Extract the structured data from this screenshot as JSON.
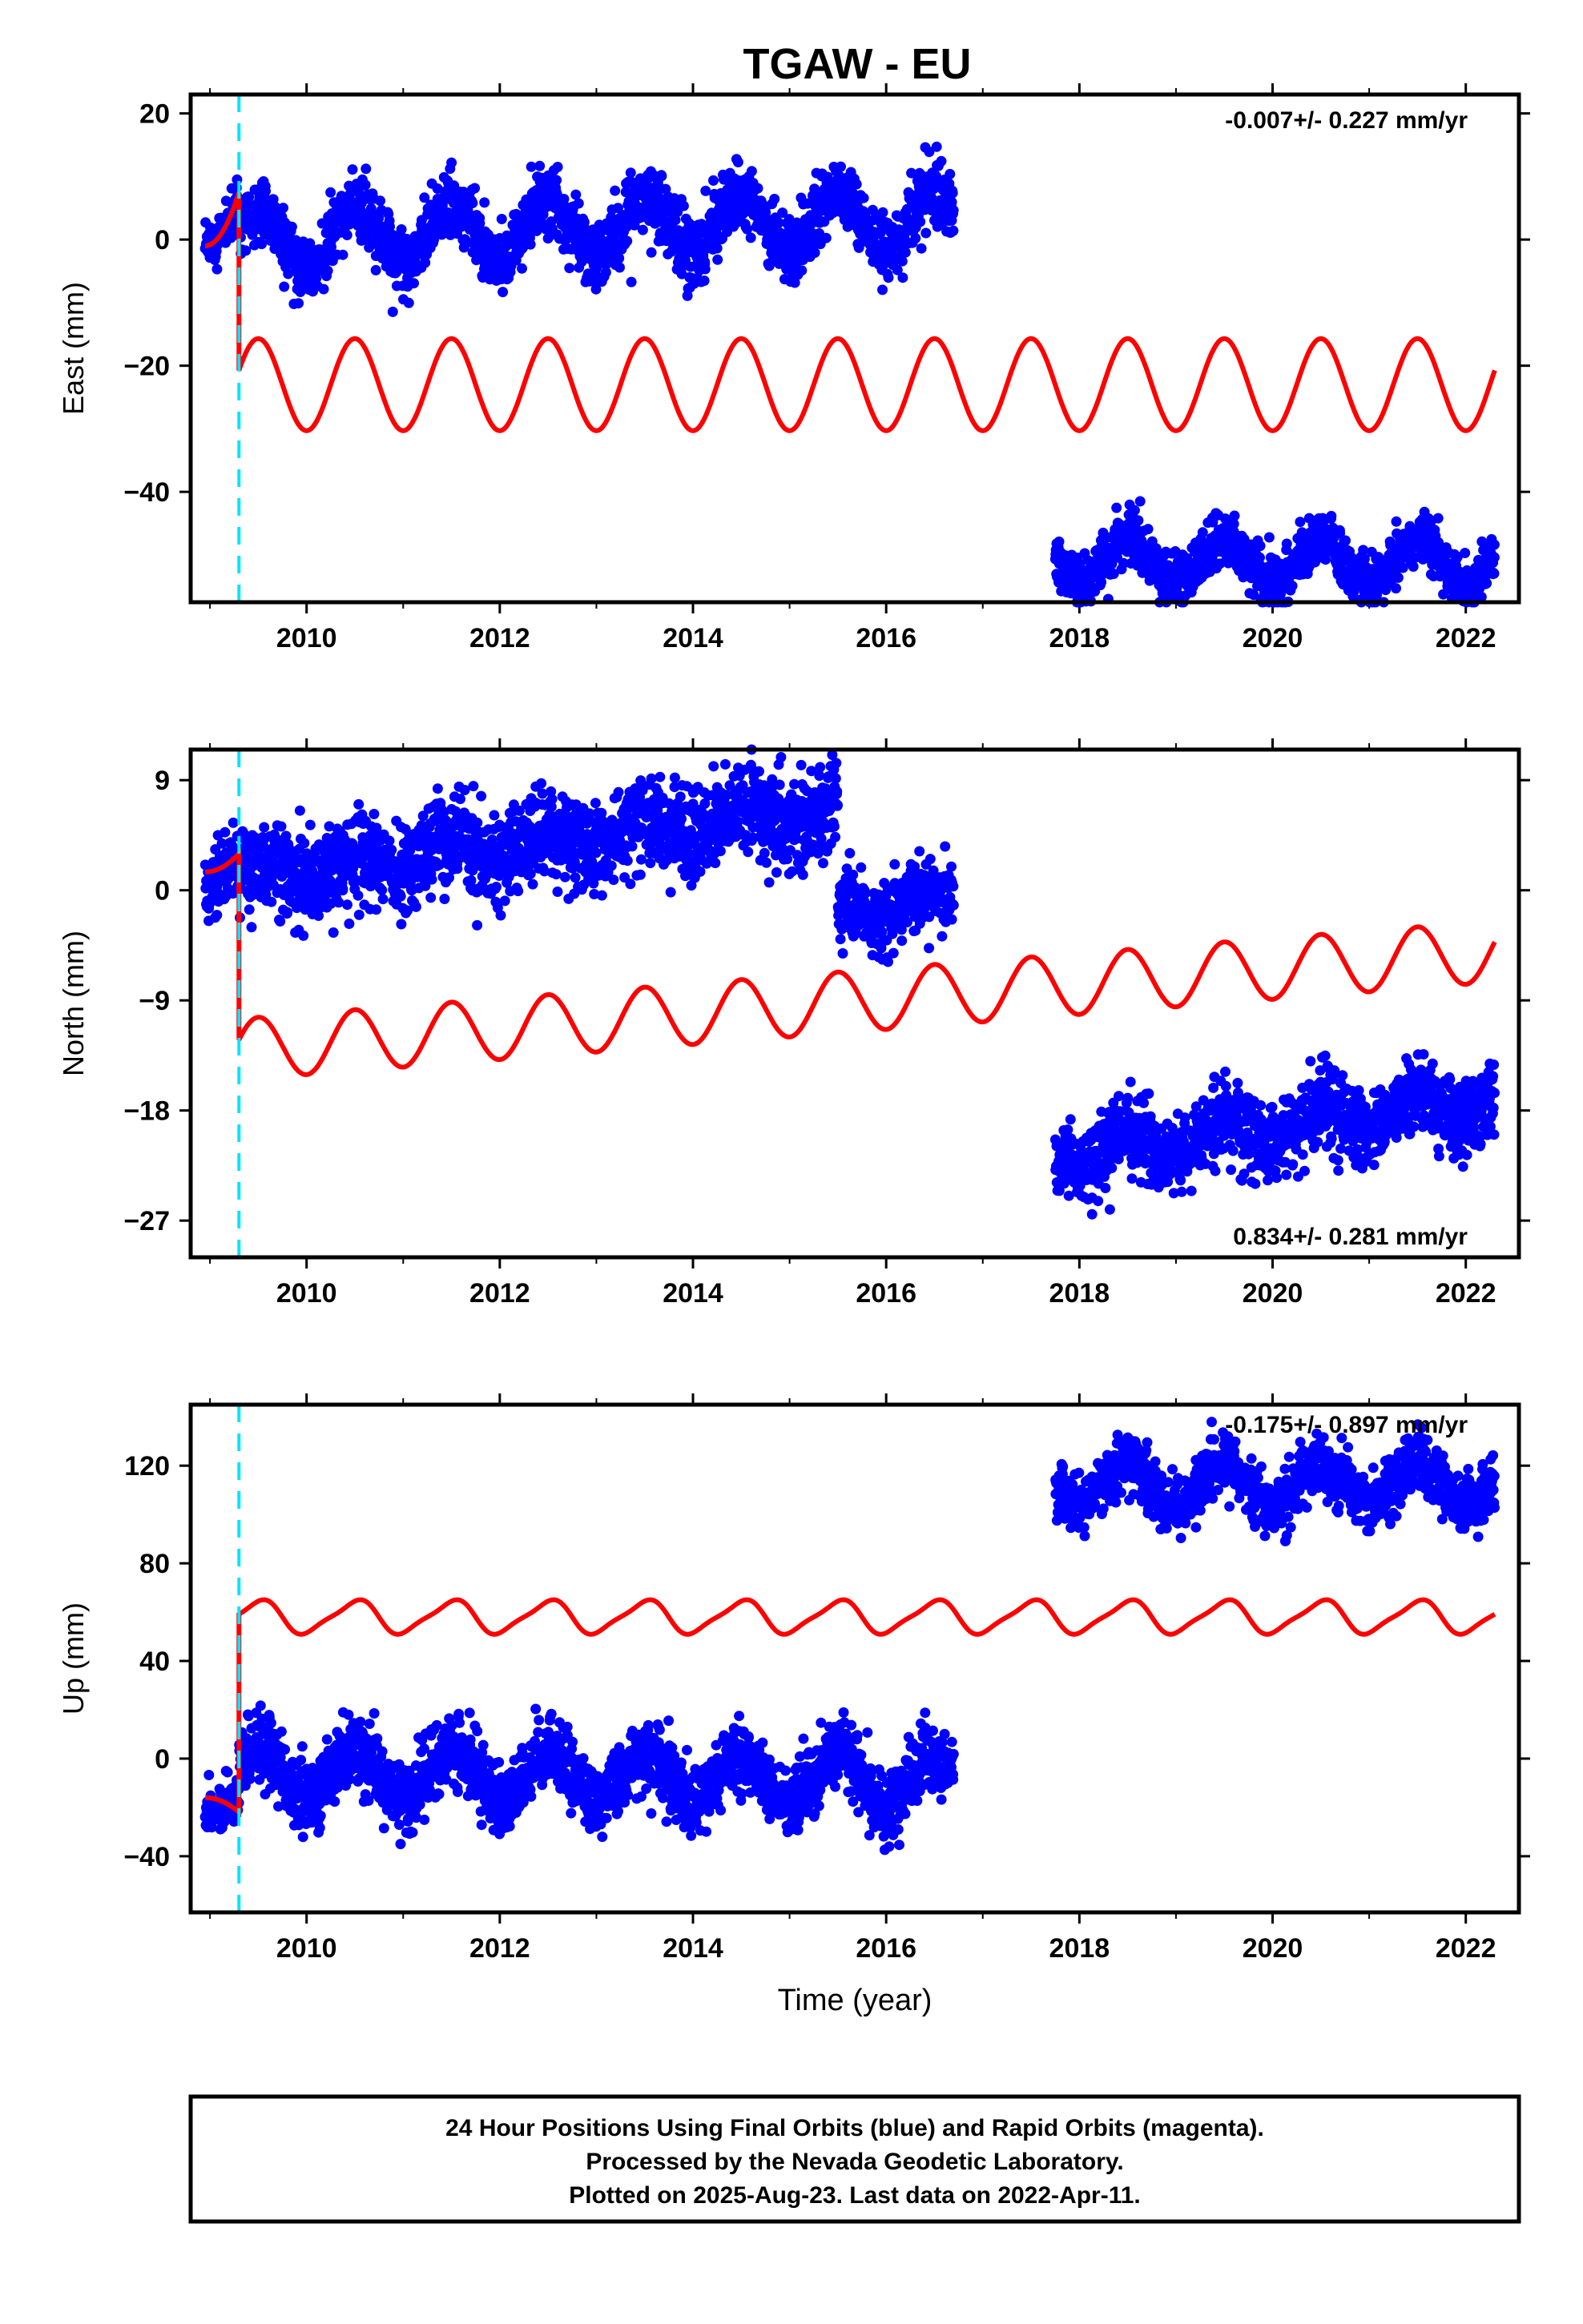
{
  "title": "TGAW - EU",
  "colors": {
    "final_orbits": "#0000ff",
    "model": "#ff0000",
    "event_line": "#00e5ff",
    "axes": "#000000"
  },
  "xaxis": {
    "label": "Time (year)",
    "ticks": [
      "2010",
      "2012",
      "2014",
      "2016",
      "2018",
      "2020",
      "2022"
    ]
  },
  "footer": {
    "line1": "24 Hour Positions Using Final Orbits (blue) and Rapid Orbits (magenta).",
    "line2": "Processed by the Nevada Geodetic Laboratory.",
    "line3": "Plotted on 2025-Aug-23. Last data on 2022-Apr-11."
  },
  "chart_data": [
    {
      "type": "scatter",
      "component": "east",
      "ylabel": "East (mm)",
      "rate": "-0.007+/- 0.227 mm/yr",
      "xlim": [
        2008.8,
        2022.55
      ],
      "ylim": [
        -57.5,
        23
      ],
      "yticks": [
        "20",
        "0",
        "−20",
        "−40"
      ],
      "event_line_x": 2009.3,
      "segments": [
        {
          "x0": 2008.95,
          "x1": 2009.3,
          "base0": -1.5,
          "base1": 5.5,
          "amp": 1.0,
          "noise": 1.8
        },
        {
          "x0": 2009.3,
          "x1": 2016.7,
          "base0": 0.0,
          "base1": 3.5,
          "amp": 4.5,
          "noise": 2.6
        },
        {
          "x0": 2017.75,
          "x1": 2022.3,
          "base0": -51.0,
          "base1": -51.0,
          "amp": 3.5,
          "noise": 2.0
        }
      ],
      "model": {
        "pre": {
          "x0": 2008.95,
          "x1": 2009.3,
          "y0": -1.0,
          "y1": 7.5
        },
        "post": {
          "x0": 2009.3,
          "x1": 2022.3,
          "base": -23.0,
          "amp": 7.3
        }
      }
    },
    {
      "type": "scatter",
      "component": "north",
      "ylabel": "North (mm)",
      "rate": "0.834+/- 0.281 mm/yr",
      "xlim": [
        2008.8,
        2022.55
      ],
      "ylim": [
        -30,
        11.5
      ],
      "yticks": [
        "9",
        "0",
        "−9",
        "−18",
        "−27"
      ],
      "event_line_x": 2009.3,
      "segments": [
        {
          "x0": 2008.95,
          "x1": 2009.3,
          "base0": 1.0,
          "base1": 2.5,
          "amp": 0.5,
          "noise": 1.5
        },
        {
          "x0": 2009.3,
          "x1": 2015.5,
          "base0": 1.0,
          "base1": 6.5,
          "amp": 1.0,
          "noise": 1.8
        },
        {
          "x0": 2015.5,
          "x1": 2016.7,
          "base0": -2.0,
          "base1": -1.0,
          "amp": 0.8,
          "noise": 1.4
        },
        {
          "x0": 2017.75,
          "x1": 2022.3,
          "base0": -22.0,
          "base1": -17.0,
          "amp": 1.2,
          "noise": 1.6
        }
      ],
      "model": {
        "pre": {
          "x0": 2008.95,
          "x1": 2009.3,
          "y0": 1.5,
          "y1": 3.0
        },
        "post": {
          "x0": 2009.3,
          "x1": 2022.3,
          "base0": -13.0,
          "base1": -5.0,
          "amp": 2.5
        }
      }
    },
    {
      "type": "scatter",
      "component": "up",
      "ylabel": "Up (mm)",
      "rate": "-0.175+/- 0.897 mm/yr",
      "xlim": [
        2008.8,
        2022.55
      ],
      "ylim": [
        -63,
        145
      ],
      "yticks": [
        "120",
        "80",
        "40",
        "0",
        "−40"
      ],
      "event_line_x": 2009.3,
      "segments": [
        {
          "x0": 2008.95,
          "x1": 2009.3,
          "base0": -18.0,
          "base1": -16.0,
          "amp": 3.0,
          "noise": 5.0
        },
        {
          "x0": 2009.3,
          "x1": 2016.7,
          "base0": -5.0,
          "base1": -10.0,
          "amp": 10.0,
          "noise": 7.0
        },
        {
          "x0": 2017.75,
          "x1": 2022.3,
          "base0": 112.0,
          "base1": 112.0,
          "amp": 9.0,
          "noise": 6.0
        }
      ],
      "model": {
        "pre": {
          "x0": 2008.95,
          "x1": 2009.3,
          "y0": -16.0,
          "y1": -22.0
        },
        "post": {
          "x0": 2009.3,
          "x1": 2022.3,
          "base": 58.0,
          "amp": 6.5
        }
      }
    }
  ]
}
